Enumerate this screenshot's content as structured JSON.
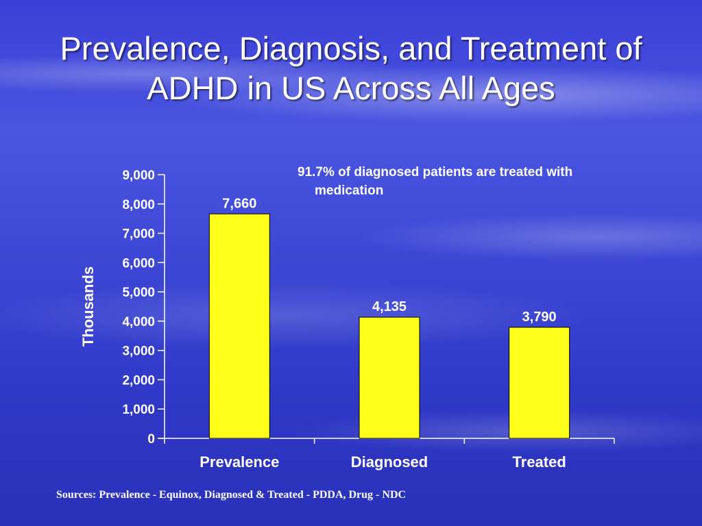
{
  "title": {
    "line1": "Prevalence, Diagnosis, and Treatment of",
    "line2": "ADHD in US Across All Ages"
  },
  "annotation": {
    "line1": "91.7% of diagnosed patients are treated with",
    "line2": "medication"
  },
  "sources": "Sources: Prevalence - Equinox, Diagnosed & Treated - PDDA, Drug - NDC",
  "chart_data": {
    "type": "bar",
    "categories": [
      "Prevalence",
      "Diagnosed",
      "Treated"
    ],
    "values": [
      7660,
      4135,
      3790
    ],
    "value_labels": [
      "7,660",
      "4,135",
      "3,790"
    ],
    "ylabel": "Thousands",
    "xlabel": "",
    "ylim": [
      0,
      9000
    ],
    "yticks": [
      0,
      1000,
      2000,
      3000,
      4000,
      5000,
      6000,
      7000,
      8000,
      9000
    ],
    "ytick_labels": [
      "0",
      "1,000",
      "2,000",
      "3,000",
      "4,000",
      "5,000",
      "6,000",
      "7,000",
      "8,000",
      "9,000"
    ],
    "grid": false,
    "bar_color": "#ffff1a",
    "bar_edge_color": "#000000",
    "axis_color": "#ffffff"
  }
}
